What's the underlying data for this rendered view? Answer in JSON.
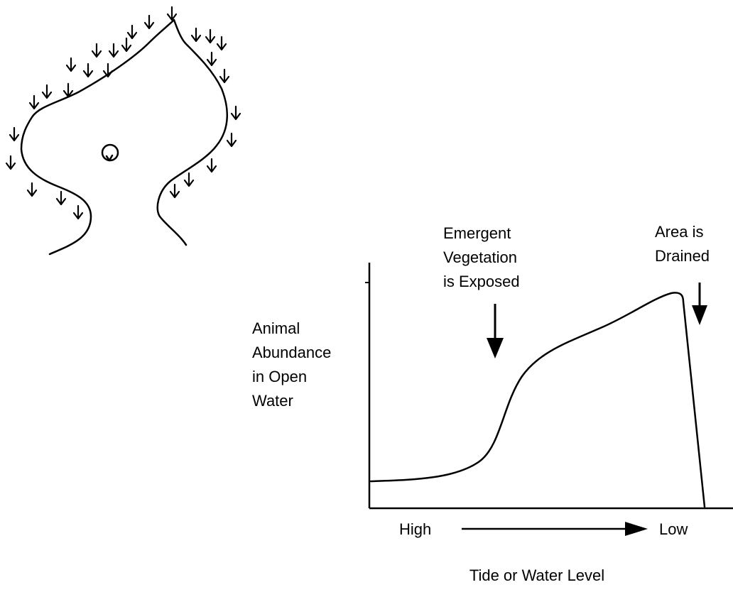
{
  "map": {},
  "graph": {
    "y_axis_label": {
      "lines": [
        "Animal",
        "Abundance",
        "in Open",
        "Water"
      ]
    },
    "annotations": [
      {
        "lines": [
          "Emergent",
          "Vegetation",
          "is Exposed"
        ]
      },
      {
        "lines": [
          "Area is",
          "Drained"
        ]
      }
    ],
    "x_axis_start": "High",
    "x_axis_end": "Low",
    "x_axis_label": "Tide or Water Level"
  }
}
